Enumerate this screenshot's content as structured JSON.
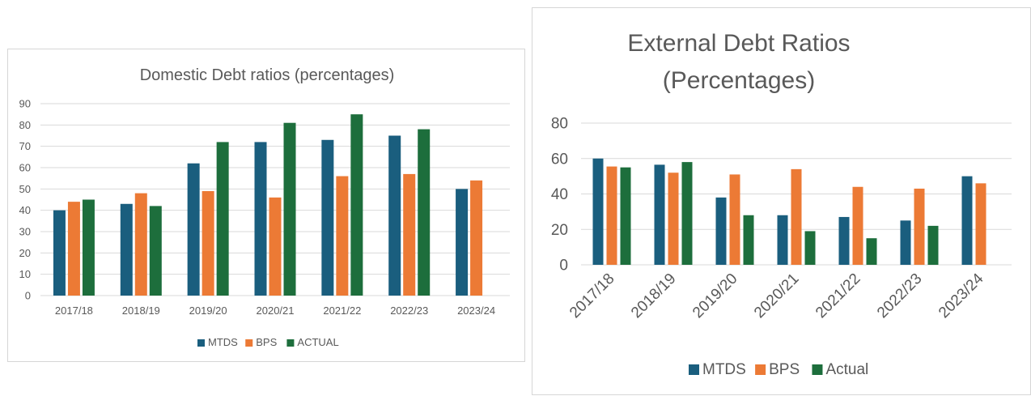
{
  "colors": {
    "mtds": "#1a5e7e",
    "bps": "#ec7a35",
    "actual": "#1d6e3c"
  },
  "chart_data": [
    {
      "type": "bar",
      "title": "Domestic Debt ratios (percentages)",
      "categories": [
        "2017/18",
        "2018/19",
        "2019/20",
        "2020/21",
        "2021/22",
        "2022/23",
        "2023/24"
      ],
      "series": [
        {
          "name": "MTDS",
          "values": [
            40,
            43,
            62,
            72,
            73,
            75,
            50
          ]
        },
        {
          "name": "BPS",
          "values": [
            44,
            48,
            49,
            46,
            56,
            57,
            54
          ]
        },
        {
          "name": "ACTUAL",
          "values": [
            45,
            42,
            72,
            81,
            85,
            78,
            null
          ]
        }
      ],
      "ylim": [
        0,
        90
      ],
      "yticks": [
        "0",
        "10",
        "20",
        "30",
        "40",
        "50",
        "60",
        "70",
        "80",
        "90"
      ],
      "grid": true,
      "legend": "bottom"
    },
    {
      "type": "bar",
      "title_lines": [
        "External Debt Ratios",
        "(Percentages)"
      ],
      "categories": [
        "2017/18",
        "2018/19",
        "2019/20",
        "2020/21",
        "2021/22",
        "2022/23",
        "2023/24"
      ],
      "series": [
        {
          "name": "MTDS",
          "values": [
            60,
            56.5,
            38,
            28,
            27,
            25,
            50
          ]
        },
        {
          "name": "BPS",
          "values": [
            55.5,
            52,
            51,
            54,
            44,
            43,
            46
          ]
        },
        {
          "name": "Actual",
          "values": [
            55,
            58,
            28,
            19,
            15,
            22,
            null
          ]
        }
      ],
      "ylim": [
        0,
        80
      ],
      "yticks": [
        "0",
        "20",
        "40",
        "60",
        "80"
      ],
      "grid": true,
      "legend": "bottom"
    }
  ]
}
